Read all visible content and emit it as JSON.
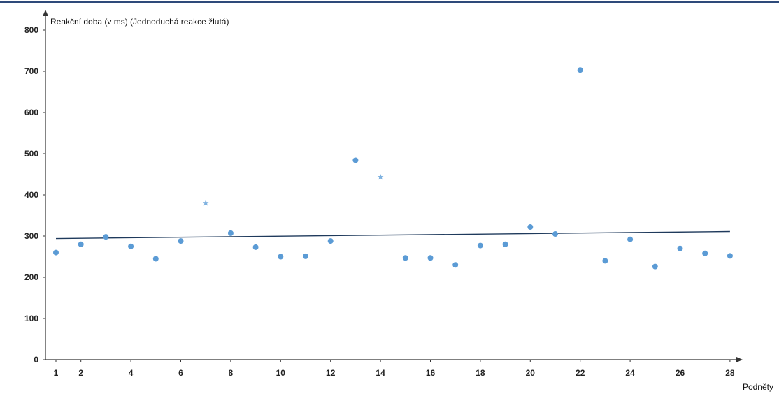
{
  "chart_data": {
    "type": "scatter",
    "title": "",
    "ylabel": "Reakční doba (v ms) (Jednoduchá reakce žlutá)",
    "xlabel": "Podněty",
    "xlim": [
      1,
      28
    ],
    "ylim": [
      0,
      800
    ],
    "yticks": [
      "0",
      "100",
      "200",
      "300",
      "400",
      "500",
      "600",
      "700",
      "800"
    ],
    "xticks": [
      "1",
      "2",
      "4",
      "6",
      "8",
      "10",
      "12",
      "14",
      "16",
      "18",
      "20",
      "22",
      "24",
      "26",
      "28"
    ],
    "grid": false,
    "legend": "none",
    "points": [
      {
        "x": 1,
        "y": 260,
        "marker": "dot"
      },
      {
        "x": 2,
        "y": 280,
        "marker": "dot"
      },
      {
        "x": 3,
        "y": 298,
        "marker": "dot"
      },
      {
        "x": 4,
        "y": 275,
        "marker": "dot"
      },
      {
        "x": 5,
        "y": 245,
        "marker": "dot"
      },
      {
        "x": 6,
        "y": 288,
        "marker": "dot"
      },
      {
        "x": 7,
        "y": 380,
        "marker": "star"
      },
      {
        "x": 8,
        "y": 307,
        "marker": "dot"
      },
      {
        "x": 9,
        "y": 273,
        "marker": "dot"
      },
      {
        "x": 10,
        "y": 250,
        "marker": "dot"
      },
      {
        "x": 11,
        "y": 251,
        "marker": "dot"
      },
      {
        "x": 12,
        "y": 288,
        "marker": "dot"
      },
      {
        "x": 13,
        "y": 484,
        "marker": "dot"
      },
      {
        "x": 14,
        "y": 443,
        "marker": "star"
      },
      {
        "x": 15,
        "y": 247,
        "marker": "dot"
      },
      {
        "x": 16,
        "y": 247,
        "marker": "dot"
      },
      {
        "x": 17,
        "y": 230,
        "marker": "dot"
      },
      {
        "x": 18,
        "y": 277,
        "marker": "dot"
      },
      {
        "x": 19,
        "y": 280,
        "marker": "dot"
      },
      {
        "x": 20,
        "y": 322,
        "marker": "dot"
      },
      {
        "x": 21,
        "y": 305,
        "marker": "dot"
      },
      {
        "x": 22,
        "y": 703,
        "marker": "dot"
      },
      {
        "x": 23,
        "y": 240,
        "marker": "dot"
      },
      {
        "x": 24,
        "y": 292,
        "marker": "dot"
      },
      {
        "x": 25,
        "y": 226,
        "marker": "dot"
      },
      {
        "x": 26,
        "y": 270,
        "marker": "dot"
      },
      {
        "x": 27,
        "y": 258,
        "marker": "dot"
      },
      {
        "x": 28,
        "y": 252,
        "marker": "dot"
      }
    ],
    "trendline": {
      "x": [
        1,
        28
      ],
      "y": [
        294,
        311
      ]
    },
    "colors": {
      "point": "#5b9bd5",
      "star": "#7fb2e0",
      "trend": "#1f3a5c",
      "axis": "#333333",
      "top_border": "#2e4a7a"
    }
  }
}
